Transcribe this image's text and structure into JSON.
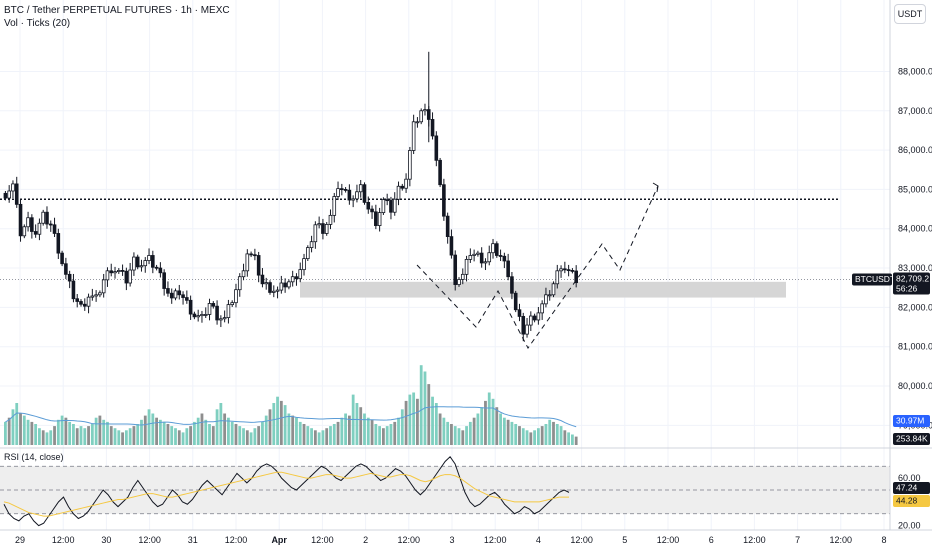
{
  "header": {
    "symbol_title": "BTC / Tether PERPETUAL FUTURES · 1h · MEXC",
    "volume_legend": "Vol · Ticks (20)",
    "currency_button": "USDT"
  },
  "rsi_panel": {
    "legend": "RSI (14, close)"
  },
  "badges": {
    "symbol": "BTCUSDT.P",
    "last_price": "82,709.2",
    "countdown": "56:26",
    "vol_ma": "30.97M",
    "volume": "253.84K",
    "rsi_value": "47.24",
    "rsi_ma": "44.28"
  },
  "colors": {
    "candle_up": "#131722",
    "candle_down": "#131722",
    "vol_up": "#7fcfc0",
    "vol_down": "#8e8e8e",
    "vol_ma_line": "#5b9cd6",
    "rsi_line": "#131722",
    "rsi_ma_line": "#f5c842",
    "zone": "#d6d6d6",
    "badge_dark": "#131722",
    "badge_blue": "#2962ff"
  },
  "chart_data": [
    {
      "type": "candlestick",
      "title": "BTC / Tether PERPETUAL FUTURES · 1h · MEXC",
      "x_tick_labels": [
        "29",
        "12:00",
        "30",
        "12:00",
        "31",
        "12:00",
        "Apr",
        "12:00",
        "2",
        "12:00",
        "3",
        "12:00",
        "4",
        "12:00",
        "5",
        "12:00",
        "6",
        "12:00",
        "7",
        "12:00",
        "8"
      ],
      "y_tick_labels": [
        "88,000.0",
        "87,000.0",
        "86,000.0",
        "85,000.0",
        "84,000.0",
        "83,000.0",
        "82,000.0",
        "81,000.0",
        "80,000.0",
        "79,000.0"
      ],
      "ylim": [
        78500,
        88800
      ],
      "key_level_dotted": 84750,
      "last_price": 82709.2,
      "support_zone": [
        82250,
        82650
      ],
      "price_path": [
        [
          0,
          84900
        ],
        [
          2,
          85100
        ],
        [
          4,
          83900
        ],
        [
          6,
          84200
        ],
        [
          8,
          83900
        ],
        [
          10,
          84300
        ],
        [
          12,
          84100
        ],
        [
          14,
          83500
        ],
        [
          16,
          82800
        ],
        [
          18,
          82300
        ],
        [
          20,
          82000
        ],
        [
          22,
          82300
        ],
        [
          24,
          82200
        ],
        [
          26,
          82700
        ],
        [
          28,
          83000
        ],
        [
          30,
          82900
        ],
        [
          32,
          82700
        ],
        [
          34,
          83200
        ],
        [
          36,
          83100
        ],
        [
          38,
          83200
        ],
        [
          40,
          83000
        ],
        [
          42,
          82600
        ],
        [
          44,
          82200
        ],
        [
          46,
          82400
        ],
        [
          48,
          82100
        ],
        [
          50,
          81800
        ],
        [
          52,
          81700
        ],
        [
          54,
          82100
        ],
        [
          56,
          81800
        ],
        [
          58,
          81700
        ],
        [
          60,
          82200
        ],
        [
          62,
          82700
        ],
        [
          64,
          83400
        ],
        [
          66,
          83200
        ],
        [
          68,
          82600
        ],
        [
          70,
          82500
        ],
        [
          72,
          82400
        ],
        [
          74,
          82600
        ],
        [
          76,
          82700
        ],
        [
          78,
          83000
        ],
        [
          80,
          83400
        ],
        [
          82,
          84100
        ],
        [
          84,
          84000
        ],
        [
          86,
          84300
        ],
        [
          88,
          85100
        ],
        [
          90,
          84900
        ],
        [
          92,
          84800
        ],
        [
          94,
          85000
        ],
        [
          96,
          84500
        ],
        [
          98,
          84200
        ],
        [
          100,
          84700
        ],
        [
          102,
          84500
        ],
        [
          104,
          85000
        ],
        [
          106,
          85300
        ],
        [
          108,
          86600
        ],
        [
          110,
          87000
        ],
        [
          112,
          86900
        ],
        [
          113,
          86400
        ],
        [
          115,
          85000
        ],
        [
          117,
          83800
        ],
        [
          119,
          82700
        ],
        [
          121,
          82800
        ],
        [
          123,
          83400
        ],
        [
          125,
          83300
        ],
        [
          127,
          83200
        ],
        [
          129,
          83500
        ],
        [
          131,
          83300
        ],
        [
          133,
          82900
        ],
        [
          135,
          81900
        ],
        [
          137,
          81400
        ],
        [
          139,
          81700
        ],
        [
          141,
          81900
        ],
        [
          143,
          82200
        ],
        [
          145,
          82600
        ],
        [
          147,
          83100
        ],
        [
          149,
          82900
        ],
        [
          151,
          82709
        ]
      ]
    },
    {
      "type": "line",
      "title": "Vol · Ticks (20)",
      "series": [
        {
          "name": "Vol",
          "values": [
            22,
            26,
            34,
            40,
            30,
            28,
            24,
            22,
            20,
            16,
            14,
            12,
            14,
            18,
            24,
            28,
            26,
            22,
            20,
            16,
            18,
            16,
            18,
            20,
            26,
            28,
            24,
            22,
            18,
            16,
            14,
            12,
            14,
            16,
            18,
            20,
            24,
            28,
            34,
            30,
            26,
            24,
            22,
            20,
            18,
            16,
            14,
            12,
            16,
            18,
            22,
            26,
            30,
            24,
            20,
            18,
            34,
            40,
            30,
            26,
            22,
            20,
            18,
            16,
            14,
            12,
            16,
            18,
            22,
            28,
            34,
            40,
            46,
            42,
            38,
            30,
            28,
            26,
            22,
            20,
            18,
            16,
            14,
            12,
            14,
            16,
            18,
            20,
            22,
            26,
            30,
            28,
            48,
            40,
            36,
            30,
            26,
            24,
            20,
            18,
            16,
            18,
            20,
            22,
            26,
            34,
            42,
            48,
            50,
            44,
            76,
            70,
            58,
            46,
            40,
            30,
            26,
            22,
            20,
            18,
            16,
            14,
            18,
            22,
            26,
            30,
            36,
            42,
            50,
            44,
            36,
            30,
            26,
            24,
            22,
            20,
            18,
            16,
            14,
            12,
            14,
            16,
            18,
            20,
            24,
            22,
            20,
            18,
            14,
            12,
            10,
            8
          ]
        }
      ]
    },
    {
      "type": "line",
      "title": "RSI (14, close)",
      "y_tick_labels": [
        "60.00",
        "40.00",
        "20.00"
      ],
      "ylim": [
        18,
        82
      ],
      "series": [
        {
          "name": "RSI",
          "values": [
            38,
            30,
            26,
            24,
            28,
            30,
            24,
            20,
            22,
            28,
            34,
            40,
            44,
            36,
            30,
            26,
            28,
            32,
            38,
            44,
            50,
            46,
            40,
            36,
            40,
            44,
            52,
            58,
            52,
            46,
            40,
            36,
            38,
            44,
            50,
            46,
            40,
            38,
            42,
            48,
            54,
            58,
            54,
            50,
            46,
            52,
            58,
            64,
            60,
            56,
            60,
            66,
            70,
            72,
            70,
            66,
            60,
            56,
            52,
            50,
            54,
            58,
            62,
            66,
            70,
            68,
            64,
            60,
            58,
            62,
            66,
            70,
            72,
            70,
            66,
            62,
            58,
            60,
            64,
            68,
            66,
            62,
            56,
            50,
            46,
            50,
            56,
            62,
            68,
            74,
            78,
            72,
            60,
            48,
            40,
            36,
            38,
            42,
            46,
            48,
            44,
            38,
            34,
            30,
            32,
            36,
            34,
            30,
            32,
            36,
            40,
            44,
            48,
            50,
            48
          ],
          "ma": [
            40,
            39,
            37,
            35,
            33,
            31,
            30,
            29,
            28,
            28,
            29,
            30,
            31,
            32,
            33,
            34,
            35,
            36,
            37,
            38,
            39,
            40,
            41,
            42,
            42,
            43,
            44,
            45,
            46,
            47,
            47,
            46,
            45,
            44,
            44,
            45,
            46,
            47,
            48,
            49,
            50,
            51,
            52,
            53,
            54,
            55,
            56,
            57,
            58,
            59,
            60,
            61,
            62,
            63,
            64,
            65,
            65,
            64,
            63,
            62,
            61,
            60,
            60,
            61,
            62,
            63,
            63,
            62,
            61,
            60,
            60,
            61,
            62,
            63,
            64,
            63,
            62,
            61,
            61,
            62,
            63,
            63,
            62,
            60,
            58,
            57,
            58,
            60,
            62,
            63,
            63,
            62,
            60,
            57,
            54,
            51,
            49,
            47,
            45,
            44,
            43,
            42,
            41,
            40,
            40,
            40,
            40,
            40,
            40,
            41,
            42,
            43,
            44,
            44,
            44
          ]
        }
      ]
    }
  ]
}
